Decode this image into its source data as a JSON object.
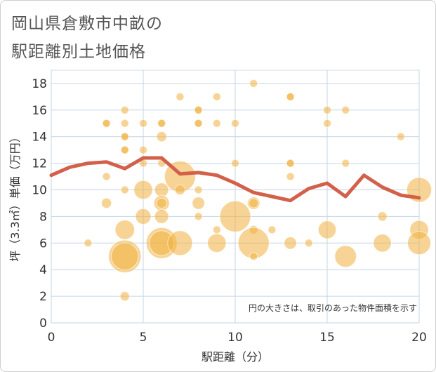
{
  "chart_data": {
    "type": "scatter",
    "title_line1": "岡山県倉敷市中畝の",
    "title_line2": "駅距離別土地価格",
    "xlabel": "駅距離（分）",
    "ylabel": "坪（3.3㎡）単価（万円）",
    "note": "円の大きさは、取引のあった物件面積を示す",
    "xlim": [
      0,
      20
    ],
    "ylim": [
      0,
      19
    ],
    "xticks": [
      0,
      5,
      10,
      15,
      20
    ],
    "yticks": [
      0,
      2,
      4,
      6,
      8,
      10,
      12,
      14,
      16,
      18
    ],
    "colors": {
      "bubble": "#f0b040",
      "line": "#d2604a",
      "grid": "#c5d4e6"
    },
    "points": [
      {
        "x": 2,
        "y": 6,
        "s": 1
      },
      {
        "x": 3,
        "y": 15,
        "s": 1
      },
      {
        "x": 3,
        "y": 15,
        "s": 1
      },
      {
        "x": 3,
        "y": 11,
        "s": 1
      },
      {
        "x": 3,
        "y": 9,
        "s": 1.3
      },
      {
        "x": 4,
        "y": 16,
        "s": 1
      },
      {
        "x": 4,
        "y": 15,
        "s": 1
      },
      {
        "x": 4,
        "y": 14,
        "s": 1
      },
      {
        "x": 4,
        "y": 14,
        "s": 1
      },
      {
        "x": 4,
        "y": 13,
        "s": 1
      },
      {
        "x": 4,
        "y": 13,
        "s": 1
      },
      {
        "x": 4,
        "y": 10,
        "s": 1
      },
      {
        "x": 4,
        "y": 7,
        "s": 2.5
      },
      {
        "x": 4,
        "y": 5,
        "s": 4.2
      },
      {
        "x": 4,
        "y": 5,
        "s": 3.5
      },
      {
        "x": 4,
        "y": 2,
        "s": 1.2
      },
      {
        "x": 5,
        "y": 15,
        "s": 1
      },
      {
        "x": 5,
        "y": 13,
        "s": 1
      },
      {
        "x": 5,
        "y": 12,
        "s": 1
      },
      {
        "x": 5,
        "y": 10,
        "s": 2.4
      },
      {
        "x": 5,
        "y": 8,
        "s": 2
      },
      {
        "x": 6,
        "y": 15,
        "s": 1
      },
      {
        "x": 6,
        "y": 15,
        "s": 1
      },
      {
        "x": 6,
        "y": 14,
        "s": 1.3
      },
      {
        "x": 6,
        "y": 12,
        "s": 1
      },
      {
        "x": 6,
        "y": 10,
        "s": 1.8
      },
      {
        "x": 6,
        "y": 9,
        "s": 2
      },
      {
        "x": 6,
        "y": 9,
        "s": 1.3
      },
      {
        "x": 6,
        "y": 8,
        "s": 1.8
      },
      {
        "x": 6,
        "y": 6,
        "s": 4
      },
      {
        "x": 6,
        "y": 6,
        "s": 3.2
      },
      {
        "x": 7,
        "y": 17,
        "s": 1
      },
      {
        "x": 7,
        "y": 11,
        "s": 4
      },
      {
        "x": 7,
        "y": 10,
        "s": 1.3
      },
      {
        "x": 7,
        "y": 6,
        "s": 3.2
      },
      {
        "x": 8,
        "y": 16,
        "s": 1
      },
      {
        "x": 8,
        "y": 16,
        "s": 1
      },
      {
        "x": 8,
        "y": 15,
        "s": 1
      },
      {
        "x": 8,
        "y": 15,
        "s": 1
      },
      {
        "x": 8,
        "y": 10,
        "s": 1
      },
      {
        "x": 8,
        "y": 9,
        "s": 1.6
      },
      {
        "x": 8,
        "y": 8,
        "s": 1
      },
      {
        "x": 9,
        "y": 17,
        "s": 1
      },
      {
        "x": 9,
        "y": 15,
        "s": 1
      },
      {
        "x": 9,
        "y": 7,
        "s": 1
      },
      {
        "x": 9,
        "y": 6,
        "s": 2.4
      },
      {
        "x": 10,
        "y": 15,
        "s": 1
      },
      {
        "x": 10,
        "y": 12,
        "s": 1
      },
      {
        "x": 10,
        "y": 8,
        "s": 4
      },
      {
        "x": 11,
        "y": 18,
        "s": 1
      },
      {
        "x": 11,
        "y": 9,
        "s": 1.6
      },
      {
        "x": 11,
        "y": 9,
        "s": 1.2
      },
      {
        "x": 11,
        "y": 7,
        "s": 1.1
      },
      {
        "x": 11,
        "y": 6,
        "s": 4
      },
      {
        "x": 11,
        "y": 5,
        "s": 1
      },
      {
        "x": 12,
        "y": 7,
        "s": 1
      },
      {
        "x": 13,
        "y": 17,
        "s": 1
      },
      {
        "x": 13,
        "y": 17,
        "s": 1
      },
      {
        "x": 13,
        "y": 12,
        "s": 1
      },
      {
        "x": 13,
        "y": 12,
        "s": 1
      },
      {
        "x": 13,
        "y": 11,
        "s": 1
      },
      {
        "x": 13,
        "y": 6,
        "s": 1.6
      },
      {
        "x": 14,
        "y": 6,
        "s": 1
      },
      {
        "x": 15,
        "y": 16,
        "s": 1
      },
      {
        "x": 15,
        "y": 15,
        "s": 1
      },
      {
        "x": 15,
        "y": 7,
        "s": 2.3
      },
      {
        "x": 16,
        "y": 16,
        "s": 1
      },
      {
        "x": 16,
        "y": 12,
        "s": 1
      },
      {
        "x": 16,
        "y": 5,
        "s": 2.8
      },
      {
        "x": 18,
        "y": 8,
        "s": 1.2
      },
      {
        "x": 18,
        "y": 6,
        "s": 2.3
      },
      {
        "x": 19,
        "y": 14,
        "s": 1
      },
      {
        "x": 20,
        "y": 10,
        "s": 3.2
      },
      {
        "x": 20,
        "y": 7,
        "s": 2.4
      },
      {
        "x": 20,
        "y": 6,
        "s": 3
      }
    ],
    "average_line": {
      "x": [
        0,
        1,
        2,
        3,
        4,
        5,
        6,
        7,
        8,
        9,
        10,
        11,
        12,
        13,
        14,
        15,
        16,
        17,
        18,
        19,
        20
      ],
      "y": [
        11.1,
        11.7,
        12.0,
        12.1,
        11.6,
        12.4,
        12.4,
        11.2,
        11.3,
        11.1,
        10.5,
        9.8,
        9.5,
        9.2,
        10.1,
        10.5,
        9.5,
        11.1,
        10.2,
        9.6,
        9.4
      ]
    }
  }
}
